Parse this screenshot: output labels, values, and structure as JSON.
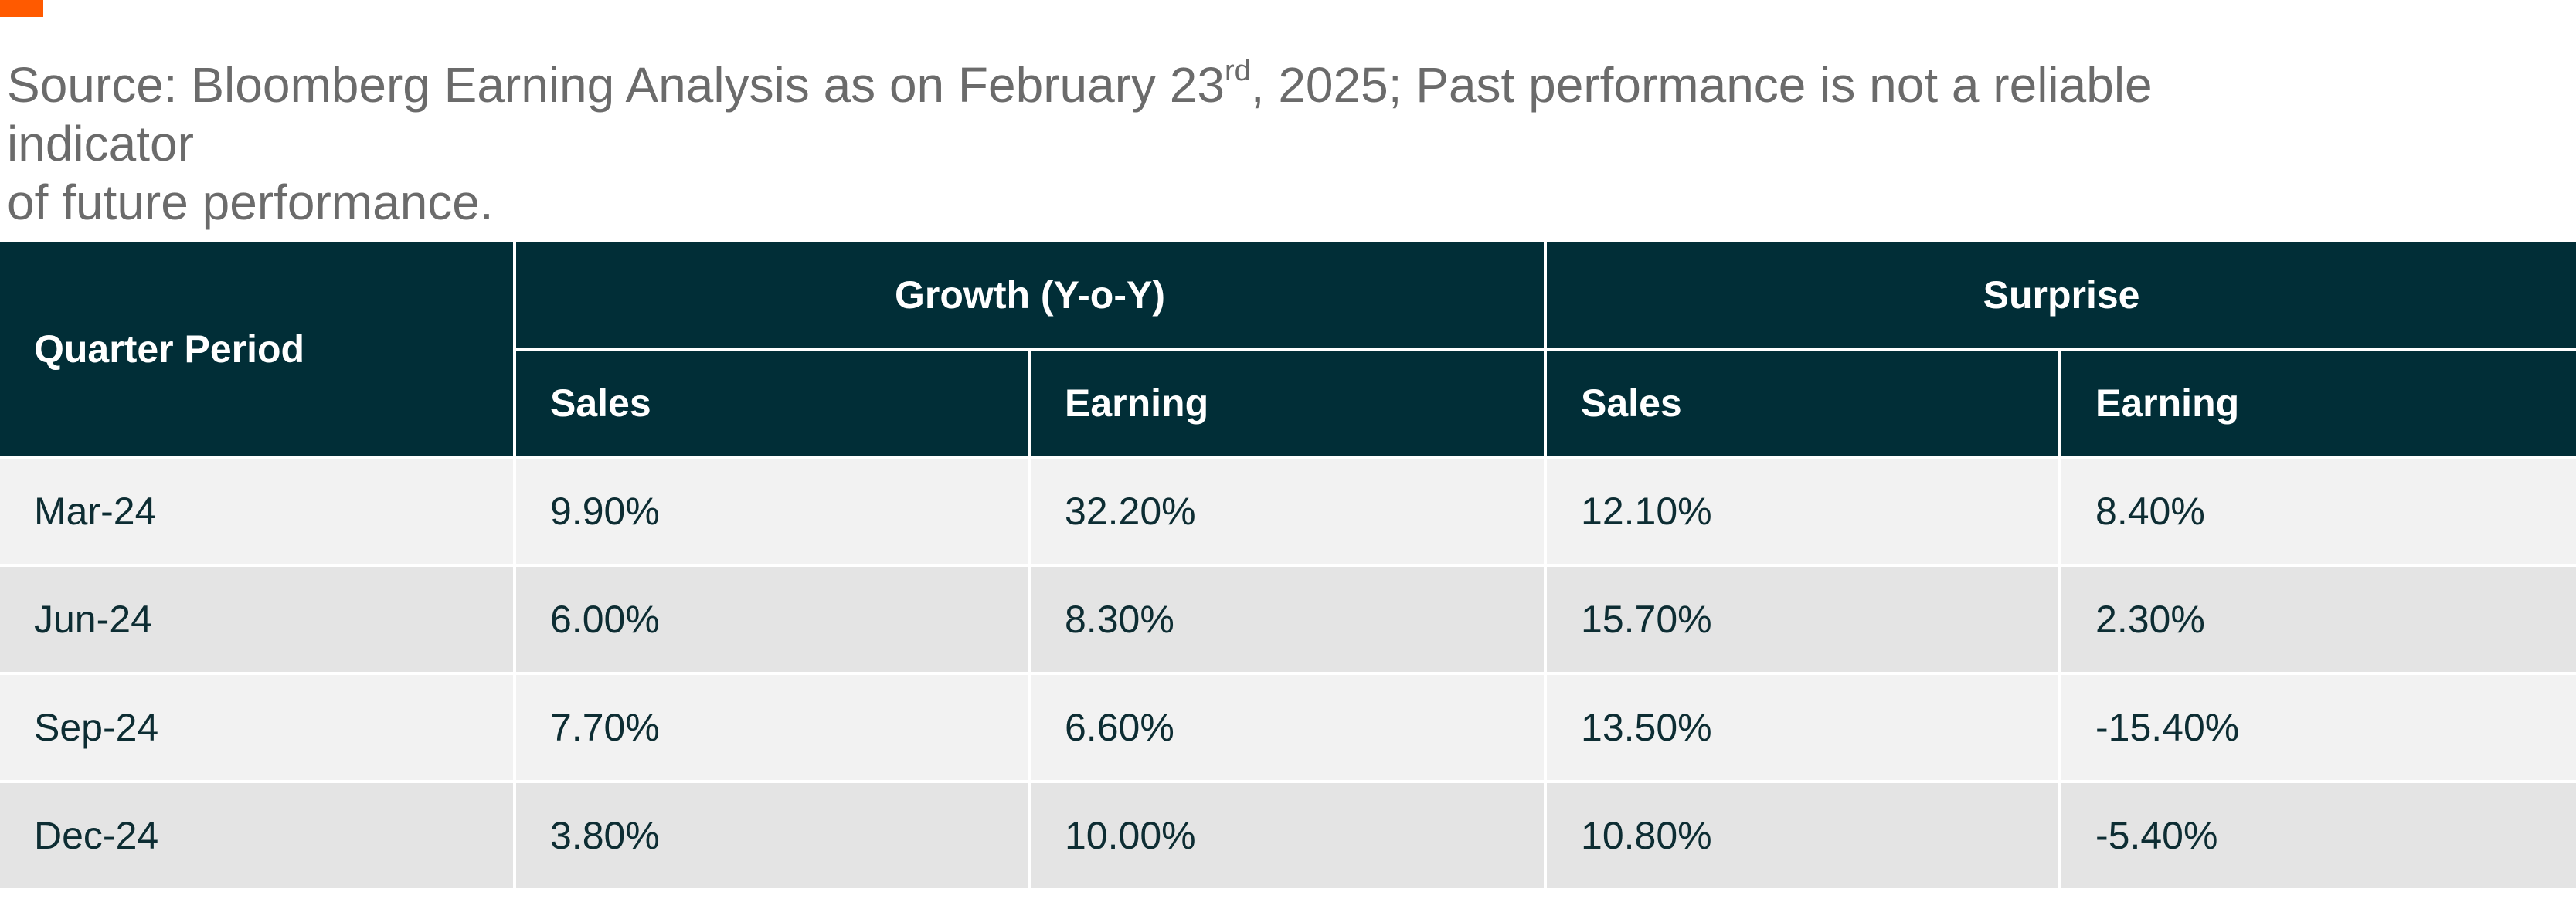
{
  "colors": {
    "accent": "#ff5a00",
    "header_bg": "#012e37",
    "row_light": "#f2f2f2",
    "row_dark": "#e4e4e4",
    "source_text": "#6b6b6b",
    "cell_text": "#0d2d33"
  },
  "source": {
    "line1_prefix": "Source: Bloomberg Earning Analysis as on February 23",
    "ordinal": "rd",
    "line1_suffix": ", 2025; Past performance is not a reliable indicator",
    "line2": "of future performance."
  },
  "table": {
    "corner_header": "Quarter Period",
    "groups": [
      "Growth (Y-o-Y)",
      "Surprise"
    ],
    "subheaders": [
      "Sales",
      "Earning",
      "Sales",
      "Earning"
    ],
    "rows": [
      {
        "period": "Mar-24",
        "values": [
          "9.90%",
          "32.20%",
          "12.10%",
          "8.40%"
        ]
      },
      {
        "period": "Jun-24",
        "values": [
          "6.00%",
          "8.30%",
          "15.70%",
          "2.30%"
        ]
      },
      {
        "period": "Sep-24",
        "values": [
          "7.70%",
          "6.60%",
          "13.50%",
          "-15.40%"
        ]
      },
      {
        "period": "Dec-24",
        "values": [
          "3.80%",
          "10.00%",
          "10.80%",
          "-5.40%"
        ]
      }
    ]
  }
}
